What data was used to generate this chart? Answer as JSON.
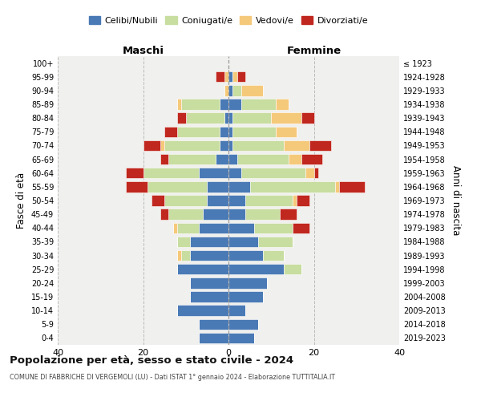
{
  "age_groups": [
    "0-4",
    "5-9",
    "10-14",
    "15-19",
    "20-24",
    "25-29",
    "30-34",
    "35-39",
    "40-44",
    "45-49",
    "50-54",
    "55-59",
    "60-64",
    "65-69",
    "70-74",
    "75-79",
    "80-84",
    "85-89",
    "90-94",
    "95-99",
    "100+"
  ],
  "birth_years": [
    "2019-2023",
    "2014-2018",
    "2009-2013",
    "2004-2008",
    "1999-2003",
    "1994-1998",
    "1989-1993",
    "1984-1988",
    "1979-1983",
    "1974-1978",
    "1969-1973",
    "1964-1968",
    "1959-1963",
    "1954-1958",
    "1949-1953",
    "1944-1948",
    "1939-1943",
    "1934-1938",
    "1929-1933",
    "1924-1928",
    "≤ 1923"
  ],
  "colors": {
    "celibi": "#4a7ab5",
    "coniugati": "#c8dda0",
    "vedovi": "#f5c97a",
    "divorziati": "#c0271e"
  },
  "male": {
    "celibi": [
      7,
      7,
      12,
      9,
      9,
      12,
      9,
      9,
      7,
      6,
      5,
      5,
      7,
      3,
      2,
      2,
      1,
      2,
      0,
      0,
      0
    ],
    "coniugati": [
      0,
      0,
      0,
      0,
      0,
      0,
      2,
      3,
      5,
      8,
      10,
      14,
      13,
      11,
      13,
      10,
      9,
      9,
      0,
      0,
      0
    ],
    "vedovi": [
      0,
      0,
      0,
      0,
      0,
      0,
      1,
      0,
      1,
      0,
      0,
      0,
      0,
      0,
      1,
      0,
      0,
      1,
      1,
      1,
      0
    ],
    "divorziati": [
      0,
      0,
      0,
      0,
      0,
      0,
      0,
      0,
      0,
      2,
      3,
      5,
      4,
      2,
      4,
      3,
      2,
      0,
      0,
      2,
      0
    ]
  },
  "female": {
    "celibi": [
      6,
      7,
      4,
      8,
      9,
      13,
      8,
      7,
      6,
      4,
      4,
      5,
      3,
      2,
      1,
      1,
      1,
      3,
      1,
      1,
      0
    ],
    "coniugati": [
      0,
      0,
      0,
      0,
      0,
      4,
      5,
      8,
      9,
      8,
      11,
      20,
      15,
      12,
      12,
      10,
      9,
      8,
      2,
      0,
      0
    ],
    "vedovi": [
      0,
      0,
      0,
      0,
      0,
      0,
      0,
      0,
      0,
      0,
      1,
      1,
      2,
      3,
      6,
      5,
      7,
      3,
      5,
      1,
      0
    ],
    "divorziati": [
      0,
      0,
      0,
      0,
      0,
      0,
      0,
      0,
      4,
      4,
      3,
      6,
      1,
      5,
      5,
      0,
      3,
      0,
      0,
      2,
      0
    ]
  },
  "xlim": 40,
  "title": "Popolazione per età, sesso e stato civile - 2024",
  "subtitle": "COMUNE DI FABBRICHE DI VERGEMOLI (LU) - Dati ISTAT 1° gennaio 2024 - Elaborazione TUTTITALIA.IT",
  "header_left": "Maschi",
  "header_right": "Femmine",
  "ylabel": "Fasce di età",
  "right_axis_label": "Anni di nascita",
  "legend_labels": [
    "Celibi/Nubili",
    "Coniugati/e",
    "Vedovi/e",
    "Divorziati/e"
  ],
  "bg_color": "#ffffff",
  "plot_bg_color": "#f0f0ee"
}
